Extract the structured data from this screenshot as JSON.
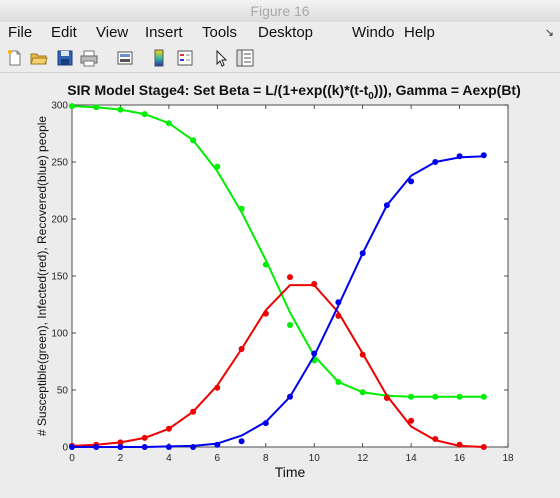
{
  "window": {
    "title": "Figure 16"
  },
  "menu": {
    "items": [
      "File",
      "Edit",
      "View",
      "Insert",
      "Tools",
      "Desktop",
      "Windo",
      "Help"
    ]
  },
  "toolbar": {
    "icons": [
      "new-figure-icon",
      "open-file-icon",
      "save-icon",
      "print-icon",
      "print-preview-icon",
      "colorbar-icon",
      "legend-icon",
      "pointer-icon",
      "property-editor-icon"
    ]
  },
  "chart_data": {
    "type": "line",
    "title_parts": [
      "SIR Model Stage4: Set Beta = L/(1+exp((k)*(t-t",
      "0",
      "))), Gamma = Aexp(Bt)"
    ],
    "xlabel": "Time",
    "ylabel": "# Susceptible(green), Infected(red), Recovered(blue) people",
    "xlim": [
      0,
      18
    ],
    "ylim": [
      0,
      300
    ],
    "xticks": [
      0,
      2,
      4,
      6,
      8,
      10,
      12,
      14,
      16,
      18
    ],
    "yticks": [
      0,
      50,
      100,
      150,
      200,
      250,
      300
    ],
    "series": [
      {
        "color": "#00ee00",
        "points": [
          [
            0,
            299
          ],
          [
            1,
            298
          ],
          [
            2,
            296
          ],
          [
            3,
            292
          ],
          [
            4,
            284
          ],
          [
            5,
            269
          ],
          [
            6,
            246
          ],
          [
            7,
            209
          ],
          [
            8,
            160
          ],
          [
            9,
            107
          ],
          [
            10,
            76
          ],
          [
            11,
            57
          ],
          [
            12,
            48
          ],
          [
            13,
            44
          ],
          [
            14,
            44
          ],
          [
            15,
            44
          ],
          [
            16,
            44
          ],
          [
            17,
            44
          ]
        ],
        "line": [
          [
            0,
            299
          ],
          [
            1,
            298
          ],
          [
            2,
            296
          ],
          [
            3,
            292
          ],
          [
            4,
            284
          ],
          [
            5,
            269
          ],
          [
            6,
            242
          ],
          [
            7,
            206
          ],
          [
            8,
            164
          ],
          [
            9,
            118
          ],
          [
            10,
            80
          ],
          [
            11,
            57
          ],
          [
            12,
            48
          ],
          [
            13,
            45
          ],
          [
            14,
            44
          ],
          [
            15,
            44
          ],
          [
            16,
            44
          ],
          [
            17,
            44
          ]
        ]
      },
      {
        "color": "#ee0000",
        "points": [
          [
            0,
            1
          ],
          [
            1,
            2
          ],
          [
            2,
            4
          ],
          [
            3,
            8
          ],
          [
            4,
            16
          ],
          [
            5,
            31
          ],
          [
            6,
            52
          ],
          [
            7,
            86
          ],
          [
            8,
            117
          ],
          [
            9,
            149
          ],
          [
            10,
            143
          ],
          [
            11,
            115
          ],
          [
            12,
            81
          ],
          [
            13,
            43
          ],
          [
            14,
            23
          ],
          [
            15,
            7
          ],
          [
            16,
            2
          ],
          [
            17,
            0
          ]
        ],
        "line": [
          [
            0,
            1
          ],
          [
            1,
            2
          ],
          [
            2,
            4
          ],
          [
            3,
            8
          ],
          [
            4,
            16
          ],
          [
            5,
            31
          ],
          [
            6,
            54
          ],
          [
            7,
            86
          ],
          [
            8,
            120
          ],
          [
            9,
            142
          ],
          [
            10,
            142
          ],
          [
            11,
            118
          ],
          [
            12,
            82
          ],
          [
            13,
            45
          ],
          [
            14,
            18
          ],
          [
            15,
            6
          ],
          [
            16,
            1
          ],
          [
            17,
            0
          ]
        ]
      },
      {
        "color": "#0000ee",
        "points": [
          [
            0,
            0
          ],
          [
            1,
            0
          ],
          [
            2,
            0
          ],
          [
            3,
            0
          ],
          [
            4,
            0
          ],
          [
            5,
            0
          ],
          [
            6,
            2
          ],
          [
            7,
            5
          ],
          [
            8,
            21
          ],
          [
            9,
            44
          ],
          [
            10,
            82
          ],
          [
            11,
            127
          ],
          [
            12,
            170
          ],
          [
            13,
            212
          ],
          [
            14,
            233
          ],
          [
            15,
            250
          ],
          [
            16,
            255
          ],
          [
            17,
            256
          ]
        ],
        "line": [
          [
            0,
            0
          ],
          [
            1,
            0
          ],
          [
            2,
            0
          ],
          [
            3,
            0
          ],
          [
            4,
            0.5
          ],
          [
            5,
            1
          ],
          [
            6,
            3
          ],
          [
            7,
            10
          ],
          [
            8,
            22
          ],
          [
            9,
            44
          ],
          [
            10,
            80
          ],
          [
            11,
            124
          ],
          [
            12,
            170
          ],
          [
            13,
            212
          ],
          [
            14,
            238
          ],
          [
            15,
            250
          ],
          [
            16,
            254
          ],
          [
            17,
            255
          ]
        ]
      }
    ]
  }
}
